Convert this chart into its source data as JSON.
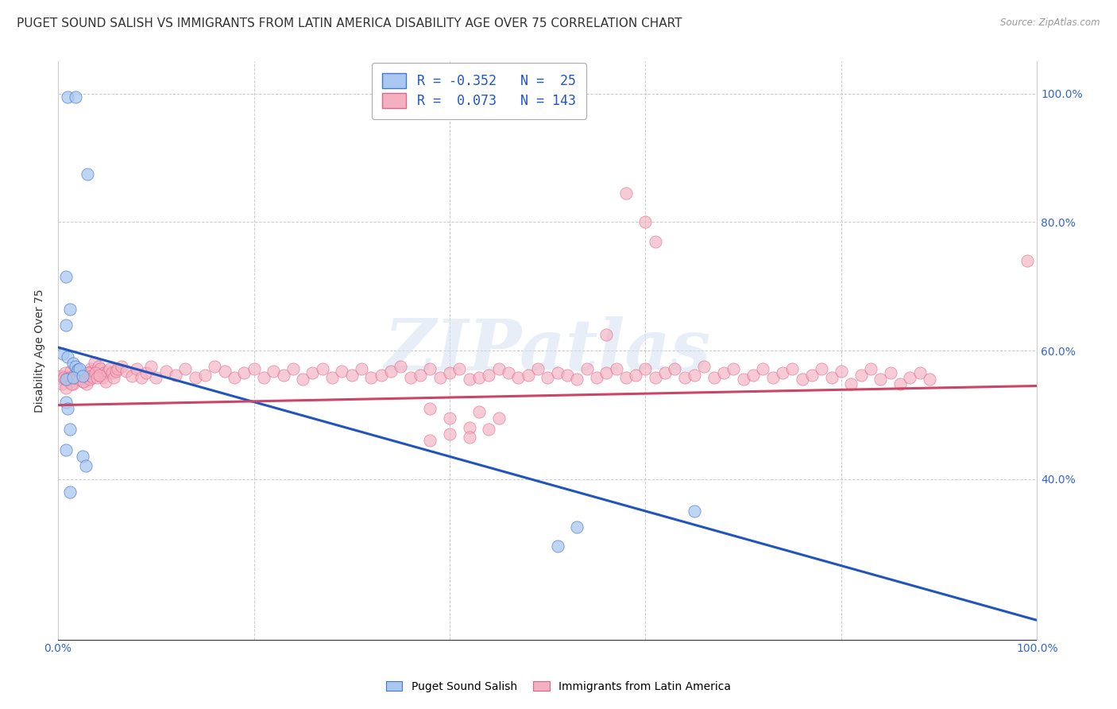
{
  "title": "PUGET SOUND SALISH VS IMMIGRANTS FROM LATIN AMERICA DISABILITY AGE OVER 75 CORRELATION CHART",
  "source": "Source: ZipAtlas.com",
  "ylabel": "Disability Age Over 75",
  "xlim": [
    0,
    1
  ],
  "ylim": [
    0.15,
    1.05
  ],
  "xticks": [
    0.0,
    0.2,
    0.4,
    0.6,
    0.8,
    1.0
  ],
  "xticklabels": [
    "0.0%",
    "",
    "",
    "",
    "",
    "100.0%"
  ],
  "yticks_right": [
    0.4,
    0.6,
    0.8,
    1.0
  ],
  "yticklabels_right": [
    "40.0%",
    "60.0%",
    "80.0%",
    "100.0%"
  ],
  "watermark": "ZIPatlas",
  "blue_R": -0.352,
  "blue_N": 25,
  "pink_R": 0.073,
  "pink_N": 143,
  "blue_color": "#a8c8f0",
  "pink_color": "#f4b0c0",
  "blue_edge_color": "#4477cc",
  "pink_edge_color": "#dd6688",
  "blue_line_color": "#2255bb",
  "pink_line_color": "#cc4466",
  "legend_label_blue": "Puget Sound Salish",
  "legend_label_pink": "Immigrants from Latin America",
  "blue_line_x0": 0.0,
  "blue_line_y0": 0.605,
  "blue_line_x1": 1.0,
  "blue_line_y1": 0.18,
  "pink_line_x0": 0.0,
  "pink_line_y0": 0.515,
  "pink_line_x1": 1.0,
  "pink_line_y1": 0.545,
  "blue_scatter": [
    [
      0.01,
      0.995
    ],
    [
      0.018,
      0.995
    ],
    [
      0.03,
      0.875
    ],
    [
      0.008,
      0.715
    ],
    [
      0.012,
      0.665
    ],
    [
      0.008,
      0.64
    ],
    [
      0.005,
      0.595
    ],
    [
      0.01,
      0.59
    ],
    [
      0.015,
      0.58
    ],
    [
      0.018,
      0.575
    ],
    [
      0.02,
      0.57
    ],
    [
      0.022,
      0.572
    ],
    [
      0.008,
      0.555
    ],
    [
      0.015,
      0.558
    ],
    [
      0.025,
      0.56
    ],
    [
      0.008,
      0.52
    ],
    [
      0.01,
      0.51
    ],
    [
      0.012,
      0.478
    ],
    [
      0.008,
      0.445
    ],
    [
      0.025,
      0.435
    ],
    [
      0.028,
      0.42
    ],
    [
      0.012,
      0.38
    ],
    [
      0.53,
      0.325
    ],
    [
      0.65,
      0.35
    ],
    [
      0.51,
      0.295
    ]
  ],
  "pink_scatter": [
    [
      0.003,
      0.56
    ],
    [
      0.005,
      0.555
    ],
    [
      0.007,
      0.565
    ],
    [
      0.009,
      0.558
    ],
    [
      0.011,
      0.55
    ],
    [
      0.013,
      0.568
    ],
    [
      0.015,
      0.548
    ],
    [
      0.017,
      0.562
    ],
    [
      0.019,
      0.572
    ],
    [
      0.021,
      0.558
    ],
    [
      0.023,
      0.56
    ],
    [
      0.025,
      0.552
    ],
    [
      0.027,
      0.562
    ],
    [
      0.029,
      0.548
    ],
    [
      0.031,
      0.565
    ],
    [
      0.033,
      0.572
    ],
    [
      0.035,
      0.568
    ],
    [
      0.037,
      0.582
    ],
    [
      0.039,
      0.562
    ],
    [
      0.041,
      0.575
    ],
    [
      0.043,
      0.572
    ],
    [
      0.045,
      0.558
    ],
    [
      0.047,
      0.565
    ],
    [
      0.049,
      0.552
    ],
    [
      0.051,
      0.568
    ],
    [
      0.053,
      0.572
    ],
    [
      0.055,
      0.565
    ],
    [
      0.057,
      0.558
    ],
    [
      0.059,
      0.568
    ],
    [
      0.061,
      0.572
    ],
    [
      0.004,
      0.548
    ],
    [
      0.006,
      0.558
    ],
    [
      0.008,
      0.542
    ],
    [
      0.01,
      0.555
    ],
    [
      0.012,
      0.558
    ],
    [
      0.014,
      0.548
    ],
    [
      0.016,
      0.562
    ],
    [
      0.018,
      0.558
    ],
    [
      0.02,
      0.568
    ],
    [
      0.022,
      0.555
    ],
    [
      0.024,
      0.562
    ],
    [
      0.026,
      0.552
    ],
    [
      0.028,
      0.56
    ],
    [
      0.03,
      0.565
    ],
    [
      0.032,
      0.555
    ],
    [
      0.034,
      0.56
    ],
    [
      0.036,
      0.558
    ],
    [
      0.038,
      0.565
    ],
    [
      0.04,
      0.558
    ],
    [
      0.042,
      0.562
    ],
    [
      0.065,
      0.575
    ],
    [
      0.07,
      0.568
    ],
    [
      0.075,
      0.56
    ],
    [
      0.08,
      0.572
    ],
    [
      0.085,
      0.558
    ],
    [
      0.09,
      0.565
    ],
    [
      0.095,
      0.575
    ],
    [
      0.1,
      0.558
    ],
    [
      0.11,
      0.568
    ],
    [
      0.12,
      0.562
    ],
    [
      0.13,
      0.572
    ],
    [
      0.14,
      0.558
    ],
    [
      0.15,
      0.562
    ],
    [
      0.16,
      0.575
    ],
    [
      0.17,
      0.568
    ],
    [
      0.18,
      0.558
    ],
    [
      0.19,
      0.565
    ],
    [
      0.2,
      0.572
    ],
    [
      0.21,
      0.558
    ],
    [
      0.22,
      0.568
    ],
    [
      0.23,
      0.562
    ],
    [
      0.24,
      0.572
    ],
    [
      0.25,
      0.555
    ],
    [
      0.26,
      0.565
    ],
    [
      0.27,
      0.572
    ],
    [
      0.28,
      0.558
    ],
    [
      0.29,
      0.568
    ],
    [
      0.3,
      0.562
    ],
    [
      0.31,
      0.572
    ],
    [
      0.32,
      0.558
    ],
    [
      0.33,
      0.562
    ],
    [
      0.34,
      0.568
    ],
    [
      0.35,
      0.575
    ],
    [
      0.36,
      0.558
    ],
    [
      0.37,
      0.562
    ],
    [
      0.38,
      0.572
    ],
    [
      0.39,
      0.558
    ],
    [
      0.4,
      0.565
    ],
    [
      0.41,
      0.572
    ],
    [
      0.42,
      0.555
    ],
    [
      0.43,
      0.558
    ],
    [
      0.44,
      0.562
    ],
    [
      0.45,
      0.572
    ],
    [
      0.46,
      0.565
    ],
    [
      0.47,
      0.558
    ],
    [
      0.48,
      0.562
    ],
    [
      0.49,
      0.572
    ],
    [
      0.5,
      0.558
    ],
    [
      0.51,
      0.565
    ],
    [
      0.52,
      0.562
    ],
    [
      0.53,
      0.555
    ],
    [
      0.54,
      0.572
    ],
    [
      0.55,
      0.558
    ],
    [
      0.56,
      0.565
    ],
    [
      0.57,
      0.572
    ],
    [
      0.58,
      0.558
    ],
    [
      0.59,
      0.562
    ],
    [
      0.6,
      0.572
    ],
    [
      0.61,
      0.558
    ],
    [
      0.62,
      0.565
    ],
    [
      0.63,
      0.572
    ],
    [
      0.64,
      0.558
    ],
    [
      0.65,
      0.562
    ],
    [
      0.66,
      0.575
    ],
    [
      0.67,
      0.558
    ],
    [
      0.68,
      0.565
    ],
    [
      0.69,
      0.572
    ],
    [
      0.7,
      0.555
    ],
    [
      0.71,
      0.562
    ],
    [
      0.72,
      0.572
    ],
    [
      0.73,
      0.558
    ],
    [
      0.74,
      0.565
    ],
    [
      0.75,
      0.572
    ],
    [
      0.76,
      0.555
    ],
    [
      0.77,
      0.562
    ],
    [
      0.78,
      0.572
    ],
    [
      0.79,
      0.558
    ],
    [
      0.8,
      0.568
    ],
    [
      0.81,
      0.548
    ],
    [
      0.82,
      0.562
    ],
    [
      0.83,
      0.572
    ],
    [
      0.84,
      0.555
    ],
    [
      0.85,
      0.565
    ],
    [
      0.86,
      0.548
    ],
    [
      0.87,
      0.558
    ],
    [
      0.88,
      0.565
    ],
    [
      0.89,
      0.555
    ],
    [
      0.58,
      0.845
    ],
    [
      0.6,
      0.8
    ],
    [
      0.61,
      0.77
    ],
    [
      0.56,
      0.625
    ],
    [
      0.38,
      0.51
    ],
    [
      0.4,
      0.495
    ],
    [
      0.42,
      0.48
    ],
    [
      0.44,
      0.478
    ],
    [
      0.38,
      0.46
    ],
    [
      0.4,
      0.47
    ],
    [
      0.42,
      0.465
    ],
    [
      0.43,
      0.505
    ],
    [
      0.45,
      0.495
    ],
    [
      0.99,
      0.74
    ]
  ],
  "background_color": "#ffffff",
  "grid_color": "#cccccc",
  "title_fontsize": 11,
  "axis_label_fontsize": 10,
  "tick_fontsize": 10,
  "legend_fontsize": 12
}
